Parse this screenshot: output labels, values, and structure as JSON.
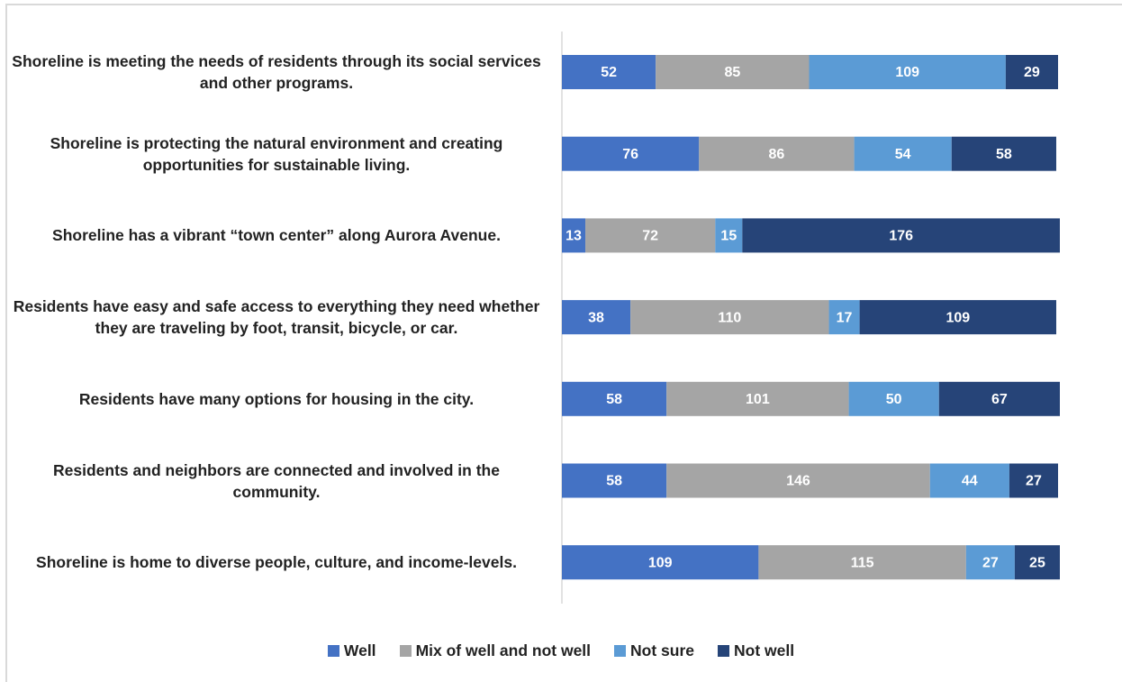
{
  "chart_data": {
    "type": "stacked-bar-horizontal",
    "categories": [
      "Shoreline is meeting the needs of residents through its social services and other programs.",
      "Shoreline is protecting the natural environment and creating opportunities for sustainable living.",
      "Shoreline has a vibrant “town center” along Aurora Avenue.",
      "Residents have easy and safe access to everything they need whether they are traveling by foot, transit, bicycle, or car.",
      "Residents have many options for housing in the city.",
      "Residents and neighbors are connected and involved in the community.",
      "Shoreline is home to diverse people, culture, and income-levels."
    ],
    "series": [
      {
        "name": "Well",
        "color": "#4472c4",
        "values": [
          52,
          76,
          13,
          38,
          58,
          58,
          109
        ]
      },
      {
        "name": "Mix of well and not well",
        "color": "#a5a5a5",
        "values": [
          85,
          86,
          72,
          110,
          101,
          146,
          115
        ]
      },
      {
        "name": "Not sure",
        "color": "#5b9bd5",
        "values": [
          109,
          54,
          15,
          17,
          50,
          44,
          27
        ]
      },
      {
        "name": "Not well",
        "color": "#264478",
        "values": [
          29,
          58,
          176,
          109,
          67,
          27,
          25
        ]
      }
    ],
    "legend": "bottom"
  }
}
